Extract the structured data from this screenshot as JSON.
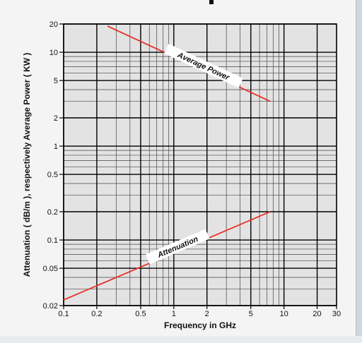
{
  "chart_data": {
    "type": "line",
    "xlabel": "Frequency in GHz",
    "ylabel": "Attenuation  ( dB/m ), respectively Average Power  ( KW )",
    "x_scale": "log",
    "y_scale": "log",
    "xlim": [
      0.1,
      30
    ],
    "ylim": [
      0.02,
      20
    ],
    "grid": true,
    "x_ticks": [
      {
        "value": 0.1,
        "label": "0.1"
      },
      {
        "value": 0.2,
        "label": "0.2"
      },
      {
        "value": 0.5,
        "label": "0.5"
      },
      {
        "value": 1,
        "label": "1"
      },
      {
        "value": 2,
        "label": "2"
      },
      {
        "value": 5,
        "label": "5"
      },
      {
        "value": 10,
        "label": "10"
      },
      {
        "value": 20,
        "label": "20"
      },
      {
        "value": 30,
        "label": "30"
      }
    ],
    "y_ticks": [
      {
        "value": 20,
        "label": "20"
      },
      {
        "value": 10,
        "label": "10"
      },
      {
        "value": 5,
        "label": "5"
      },
      {
        "value": 2,
        "label": "2"
      },
      {
        "value": 1,
        "label": "1"
      },
      {
        "value": 0.5,
        "label": "0.5"
      },
      {
        "value": 0.2,
        "label": "0.2"
      },
      {
        "value": 0.1,
        "label": "0.1"
      },
      {
        "value": 0.05,
        "label": "0.05"
      },
      {
        "value": 0.02,
        "label": "0.02"
      }
    ],
    "series": [
      {
        "name": "Average Power",
        "color": "#e8302a",
        "x": [
          0.25,
          7.5
        ],
        "y": [
          19,
          3
        ]
      },
      {
        "name": "Attenuation",
        "color": "#e8302a",
        "x": [
          0.1,
          7.5
        ],
        "y": [
          0.023,
          0.2
        ]
      }
    ]
  }
}
